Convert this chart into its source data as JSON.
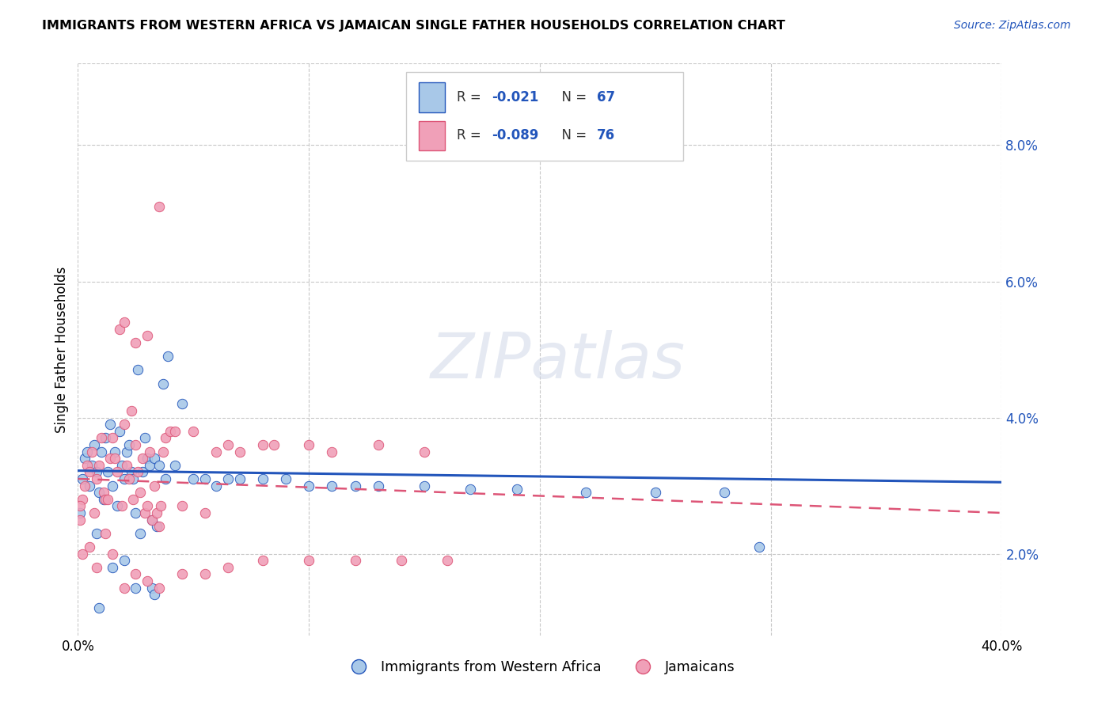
{
  "title": "IMMIGRANTS FROM WESTERN AFRICA VS JAMAICAN SINGLE FATHER HOUSEHOLDS CORRELATION CHART",
  "source": "Source: ZipAtlas.com",
  "ylabel": "Single Father Households",
  "xlim": [
    0.0,
    40.0
  ],
  "ylim": [
    0.8,
    9.2
  ],
  "ytick_values": [
    2.0,
    4.0,
    6.0,
    8.0
  ],
  "color_blue": "#a8c8e8",
  "color_pink": "#f0a0b8",
  "line_color_blue": "#2255bb",
  "line_color_pink": "#dd5577",
  "watermark": "ZIPatlas",
  "background_color": "#ffffff",
  "grid_color": "#c8c8c8",
  "blue_scatter": [
    [
      0.1,
      2.6
    ],
    [
      0.2,
      3.1
    ],
    [
      0.3,
      3.4
    ],
    [
      0.4,
      3.5
    ],
    [
      0.5,
      3.0
    ],
    [
      0.6,
      3.3
    ],
    [
      0.7,
      3.6
    ],
    [
      0.8,
      3.2
    ],
    [
      0.9,
      2.9
    ],
    [
      1.0,
      3.5
    ],
    [
      1.1,
      2.8
    ],
    [
      1.2,
      3.7
    ],
    [
      1.3,
      3.2
    ],
    [
      1.4,
      3.9
    ],
    [
      1.5,
      3.0
    ],
    [
      1.6,
      3.5
    ],
    [
      1.7,
      2.7
    ],
    [
      1.8,
      3.8
    ],
    [
      1.9,
      3.3
    ],
    [
      2.0,
      3.1
    ],
    [
      2.1,
      3.5
    ],
    [
      2.2,
      3.6
    ],
    [
      2.3,
      3.2
    ],
    [
      2.4,
      3.1
    ],
    [
      2.5,
      2.6
    ],
    [
      2.6,
      4.7
    ],
    [
      2.7,
      2.3
    ],
    [
      2.8,
      3.2
    ],
    [
      2.9,
      3.7
    ],
    [
      3.0,
      3.4
    ],
    [
      3.1,
      3.3
    ],
    [
      3.3,
      3.4
    ],
    [
      3.5,
      3.3
    ],
    [
      3.7,
      4.5
    ],
    [
      3.8,
      3.1
    ],
    [
      3.9,
      4.9
    ],
    [
      4.2,
      3.3
    ],
    [
      4.5,
      4.2
    ],
    [
      5.0,
      3.1
    ],
    [
      5.5,
      3.1
    ],
    [
      6.0,
      3.0
    ],
    [
      6.5,
      3.1
    ],
    [
      7.0,
      3.1
    ],
    [
      8.0,
      3.1
    ],
    [
      9.0,
      3.1
    ],
    [
      10.0,
      3.0
    ],
    [
      11.0,
      3.0
    ],
    [
      12.0,
      3.0
    ],
    [
      13.0,
      3.0
    ],
    [
      15.0,
      3.0
    ],
    [
      17.0,
      2.95
    ],
    [
      19.0,
      2.95
    ],
    [
      22.0,
      2.9
    ],
    [
      25.0,
      2.9
    ],
    [
      28.0,
      2.9
    ],
    [
      3.2,
      2.5
    ],
    [
      3.4,
      2.4
    ],
    [
      0.8,
      2.3
    ],
    [
      0.9,
      1.2
    ],
    [
      1.5,
      1.8
    ],
    [
      2.0,
      1.9
    ],
    [
      2.5,
      1.5
    ],
    [
      3.2,
      1.5
    ],
    [
      3.3,
      1.4
    ],
    [
      29.5,
      2.1
    ]
  ],
  "pink_scatter": [
    [
      0.1,
      2.5
    ],
    [
      0.2,
      2.8
    ],
    [
      0.3,
      3.0
    ],
    [
      0.4,
      3.3
    ],
    [
      0.5,
      3.2
    ],
    [
      0.6,
      3.5
    ],
    [
      0.7,
      2.6
    ],
    [
      0.8,
      3.1
    ],
    [
      0.9,
      3.3
    ],
    [
      1.0,
      3.7
    ],
    [
      1.1,
      2.9
    ],
    [
      1.2,
      2.8
    ],
    [
      1.3,
      2.8
    ],
    [
      1.4,
      3.4
    ],
    [
      1.5,
      3.7
    ],
    [
      1.6,
      3.4
    ],
    [
      1.7,
      3.2
    ],
    [
      1.8,
      5.3
    ],
    [
      1.9,
      2.7
    ],
    [
      2.0,
      3.9
    ],
    [
      2.1,
      3.3
    ],
    [
      2.2,
      3.1
    ],
    [
      2.3,
      4.1
    ],
    [
      2.4,
      2.8
    ],
    [
      2.5,
      3.6
    ],
    [
      2.6,
      3.2
    ],
    [
      2.7,
      2.9
    ],
    [
      2.8,
      3.4
    ],
    [
      2.9,
      2.6
    ],
    [
      3.0,
      2.7
    ],
    [
      3.0,
      5.2
    ],
    [
      3.1,
      3.5
    ],
    [
      3.2,
      2.5
    ],
    [
      3.3,
      3.0
    ],
    [
      3.4,
      2.6
    ],
    [
      3.5,
      2.4
    ],
    [
      3.6,
      2.7
    ],
    [
      3.7,
      3.5
    ],
    [
      3.8,
      3.7
    ],
    [
      4.0,
      3.8
    ],
    [
      4.2,
      3.8
    ],
    [
      3.5,
      7.1
    ],
    [
      2.5,
      5.1
    ],
    [
      2.0,
      5.4
    ],
    [
      4.5,
      2.7
    ],
    [
      5.0,
      3.8
    ],
    [
      5.5,
      2.6
    ],
    [
      6.0,
      3.5
    ],
    [
      6.5,
      3.6
    ],
    [
      7.0,
      3.5
    ],
    [
      8.0,
      3.6
    ],
    [
      8.5,
      3.6
    ],
    [
      10.0,
      3.6
    ],
    [
      11.0,
      3.5
    ],
    [
      13.0,
      3.6
    ],
    [
      15.0,
      3.5
    ],
    [
      0.5,
      2.1
    ],
    [
      0.8,
      1.8
    ],
    [
      1.2,
      2.3
    ],
    [
      1.5,
      2.0
    ],
    [
      2.0,
      1.5
    ],
    [
      2.5,
      1.7
    ],
    [
      3.0,
      1.6
    ],
    [
      3.5,
      1.5
    ],
    [
      4.5,
      1.7
    ],
    [
      5.5,
      1.7
    ],
    [
      6.5,
      1.8
    ],
    [
      8.0,
      1.9
    ],
    [
      10.0,
      1.9
    ],
    [
      12.0,
      1.9
    ],
    [
      14.0,
      1.9
    ],
    [
      16.0,
      1.9
    ],
    [
      0.2,
      2.0
    ],
    [
      0.1,
      2.7
    ]
  ]
}
